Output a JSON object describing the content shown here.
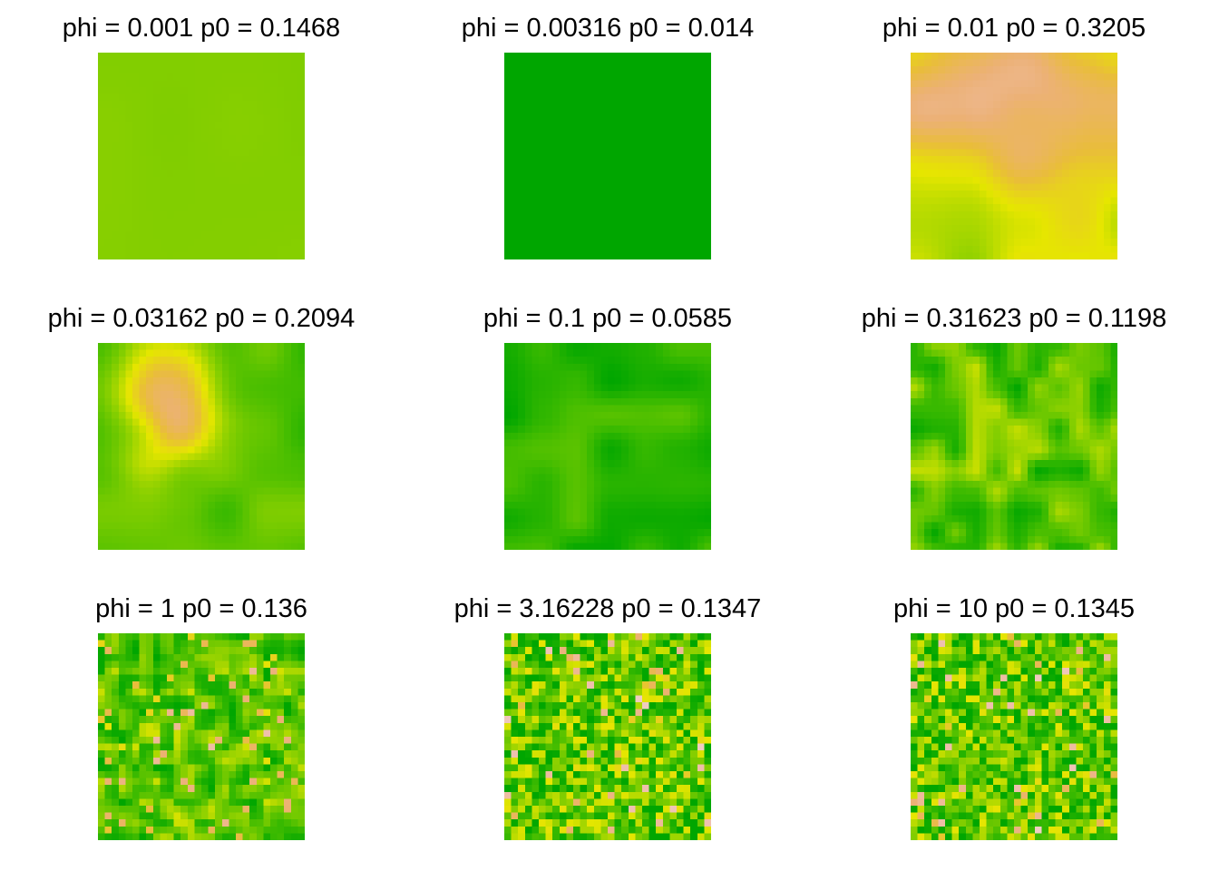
{
  "chart_data": [
    {
      "type": "heatmap",
      "title": "phi = 0.001 p0 = 0.1468",
      "phi": 0.001,
      "p0": 0.1468,
      "grid": [
        30,
        30
      ]
    },
    {
      "type": "heatmap",
      "title": "phi = 0.00316 p0 = 0.014",
      "phi": 0.00316,
      "p0": 0.014,
      "grid": [
        30,
        30
      ]
    },
    {
      "type": "heatmap",
      "title": "phi = 0.01 p0 = 0.3205",
      "phi": 0.01,
      "p0": 0.3205,
      "grid": [
        30,
        30
      ]
    },
    {
      "type": "heatmap",
      "title": "phi = 0.03162 p0 = 0.2094",
      "phi": 0.03162,
      "p0": 0.2094,
      "grid": [
        30,
        30
      ]
    },
    {
      "type": "heatmap",
      "title": "phi = 0.1 p0 = 0.0585",
      "phi": 0.1,
      "p0": 0.0585,
      "grid": [
        30,
        30
      ]
    },
    {
      "type": "heatmap",
      "title": "phi = 0.31623 p0 = 0.1198",
      "phi": 0.31623,
      "p0": 0.1198,
      "grid": [
        30,
        30
      ]
    },
    {
      "type": "heatmap",
      "title": "phi = 1 p0 = 0.136",
      "phi": 1,
      "p0": 0.136,
      "grid": [
        30,
        30
      ]
    },
    {
      "type": "heatmap",
      "title": "phi = 3.16228 p0 = 0.1347",
      "phi": 3.16228,
      "p0": 0.1347,
      "grid": [
        30,
        30
      ]
    },
    {
      "type": "heatmap",
      "title": "phi = 10 p0 = 0.1345",
      "phi": 10,
      "p0": 0.1345,
      "grid": [
        30,
        30
      ]
    }
  ],
  "palette": [
    "#00A600",
    "#3EBB00",
    "#8BD000",
    "#E6E600",
    "#E9BD3A",
    "#ECB176",
    "#EFC2B3",
    "#F2F2F2"
  ]
}
